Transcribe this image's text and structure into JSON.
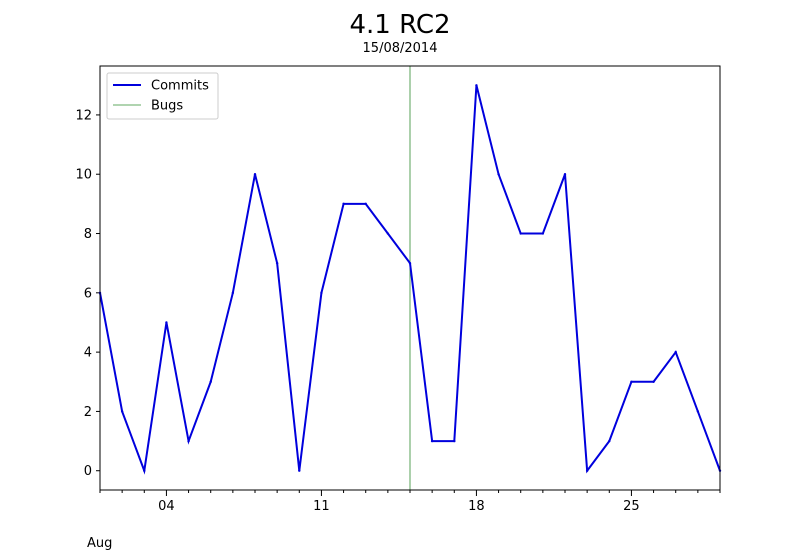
{
  "chart_data": {
    "type": "line",
    "title": "4.1 RC2",
    "subtitle": "15/08/2014",
    "xlabel": "",
    "ylabel": "",
    "x_month_label": "Aug",
    "x": [
      "2014-08-01",
      "2014-08-02",
      "2014-08-03",
      "2014-08-04",
      "2014-08-05",
      "2014-08-06",
      "2014-08-07",
      "2014-08-08",
      "2014-08-09",
      "2014-08-10",
      "2014-08-11",
      "2014-08-12",
      "2014-08-13",
      "2014-08-14",
      "2014-08-15",
      "2014-08-16",
      "2014-08-17",
      "2014-08-18",
      "2014-08-19",
      "2014-08-20",
      "2014-08-21",
      "2014-08-22",
      "2014-08-23",
      "2014-08-24",
      "2014-08-25",
      "2014-08-26",
      "2014-08-27",
      "2014-08-28",
      "2014-08-29"
    ],
    "series": [
      {
        "name": "Commits",
        "color": "#0000dd",
        "values": [
          6,
          2,
          0,
          5,
          1,
          3,
          6,
          10,
          7,
          0,
          6,
          9,
          9,
          8,
          7,
          1,
          1,
          13,
          10,
          8,
          8,
          10,
          0,
          1,
          3,
          3,
          4,
          2,
          0
        ]
      },
      {
        "name": "Bugs",
        "color": "#2e8b2e",
        "type": "vertical-line",
        "x": "2014-08-15"
      }
    ],
    "xlim": [
      "2014-08-01",
      "2014-08-29"
    ],
    "ylim": [
      -0.65,
      13.65
    ],
    "x_ticks": [
      {
        "date": "2014-08-04",
        "label": "04"
      },
      {
        "date": "2014-08-11",
        "label": "11"
      },
      {
        "date": "2014-08-18",
        "label": "18"
      },
      {
        "date": "2014-08-25",
        "label": "25"
      }
    ],
    "y_ticks": [
      {
        "value": 0,
        "label": "0"
      },
      {
        "value": 2,
        "label": "2"
      },
      {
        "value": 4,
        "label": "4"
      },
      {
        "value": 6,
        "label": "6"
      },
      {
        "value": 8,
        "label": "8"
      },
      {
        "value": 10,
        "label": "10"
      },
      {
        "value": 12,
        "label": "12"
      }
    ],
    "grid": false,
    "legend": "top-left"
  }
}
